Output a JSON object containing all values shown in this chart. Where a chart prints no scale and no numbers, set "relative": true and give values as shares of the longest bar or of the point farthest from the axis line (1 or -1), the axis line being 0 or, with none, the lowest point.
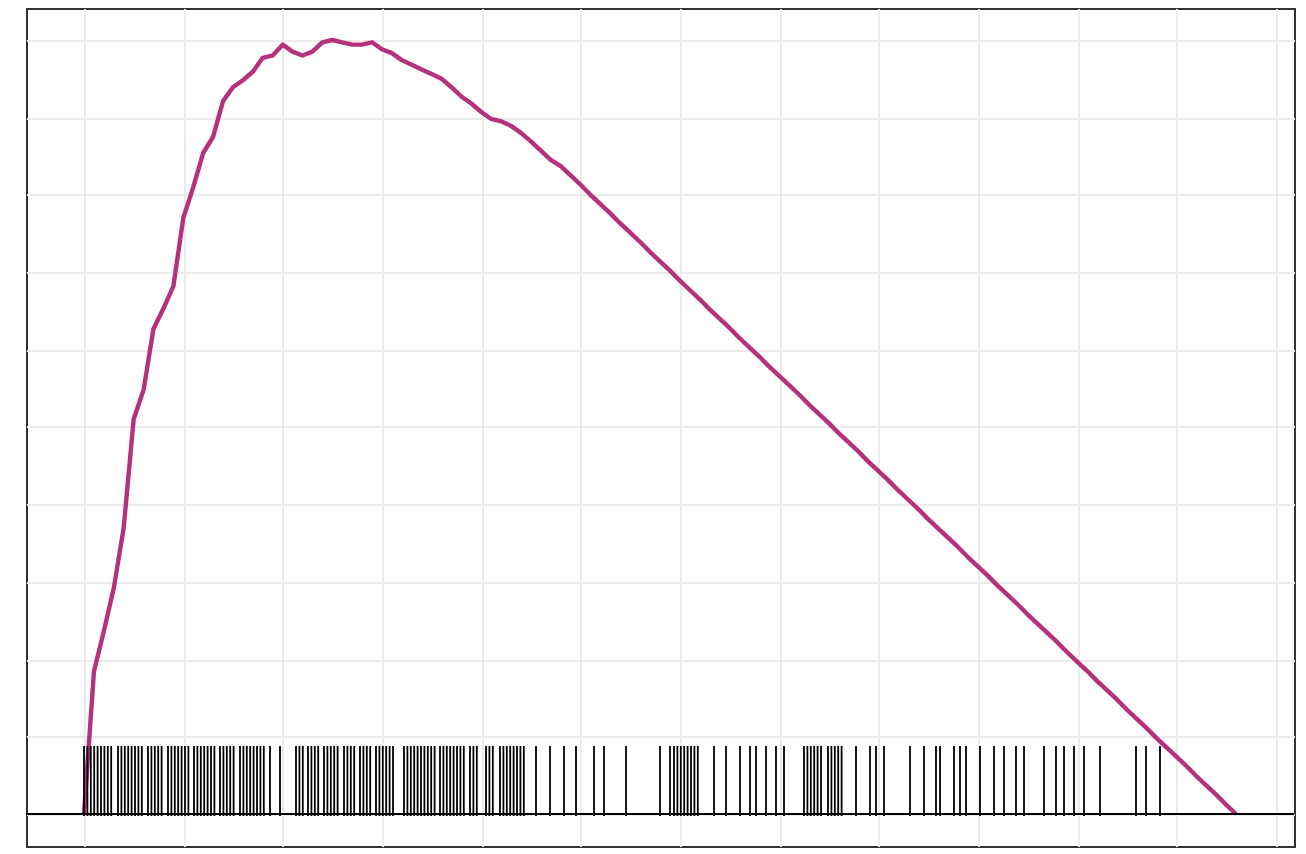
{
  "chart_data": {
    "type": "line",
    "relative": true,
    "grid": true,
    "tick_labels": false,
    "categories": [
      null,
      null,
      null,
      null,
      null,
      null,
      null,
      null,
      null,
      null,
      null,
      null,
      null,
      null,
      null,
      null,
      null,
      null,
      null,
      null,
      null,
      null,
      null,
      null,
      null,
      null,
      null,
      null,
      null,
      null,
      null,
      null,
      null,
      null,
      null,
      null,
      null,
      null,
      null,
      null,
      null,
      null,
      null,
      null,
      null,
      null,
      null,
      null,
      null,
      null,
      null,
      null,
      null,
      null,
      null,
      null,
      null,
      null,
      null,
      null,
      null,
      null,
      null,
      null,
      null,
      null,
      null,
      null,
      null,
      null,
      null,
      null,
      null,
      null,
      null,
      null,
      null,
      null,
      null,
      null,
      null,
      null,
      null,
      null,
      null,
      null,
      null,
      null,
      null,
      null,
      null,
      null,
      null,
      null,
      null,
      null,
      null,
      null,
      null,
      null,
      null,
      null,
      null,
      null,
      null,
      null,
      null,
      null,
      null,
      null,
      null,
      null,
      null,
      null,
      null,
      null,
      null
    ],
    "series": [
      {
        "color": "#b5317a",
        "values": [
          0,
          0.184,
          0.236,
          0.292,
          0.37,
          0.51,
          0.548,
          0.627,
          0.653,
          0.682,
          0.77,
          0.81,
          0.854,
          0.875,
          0.921,
          0.939,
          0.948,
          0.959,
          0.977,
          0.98,
          0.994,
          0.985,
          0.98,
          0.985,
          0.997,
          1,
          0.997,
          0.994,
          0.994,
          0.997,
          0.988,
          0.983,
          0.974,
          0.968,
          0.962,
          0.956,
          0.95,
          0.939,
          0.927,
          0.918,
          0.907,
          0.898,
          0.895,
          0.889,
          0.88,
          0.869,
          0.857,
          0.845,
          0.837,
          0.825,
          0.813,
          0.8,
          0.788,
          0.776,
          0.763,
          0.751,
          0.739,
          0.726,
          0.714,
          0.702,
          0.689,
          0.677,
          0.665,
          0.652,
          0.64,
          0.628,
          0.615,
          0.603,
          0.591,
          0.578,
          0.566,
          0.554,
          0.542,
          0.529,
          0.517,
          0.505,
          0.492,
          0.48,
          0.468,
          0.455,
          0.443,
          0.431,
          0.418,
          0.406,
          0.394,
          0.381,
          0.369,
          0.357,
          0.345,
          0.332,
          0.32,
          0.308,
          0.295,
          0.283,
          0.271,
          0.258,
          0.246,
          0.234,
          0.222,
          0.209,
          0.197,
          0.185,
          0.172,
          0.16,
          0.148,
          0.135,
          0.123,
          0.111,
          0.098,
          0.086,
          0.074,
          0.062,
          0.049,
          0.037,
          0.025,
          0.012,
          0
        ]
      }
    ]
  }
}
